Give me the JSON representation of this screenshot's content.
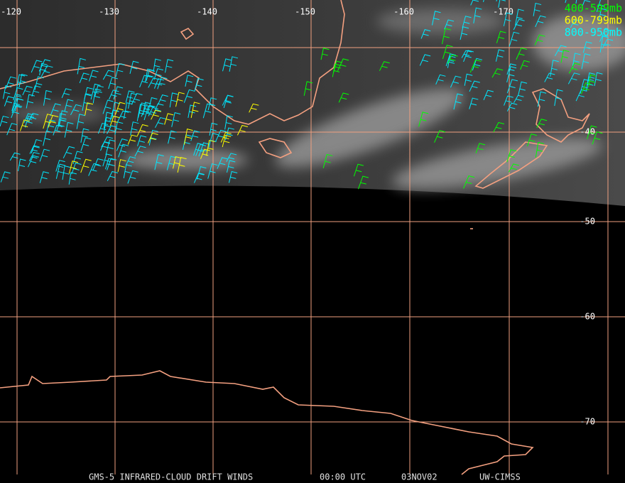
{
  "map": {
    "lon_labels": [
      "-120",
      "-130",
      "-140",
      "-150",
      "-160",
      "-170"
    ],
    "lat_labels": [
      "-40",
      "-50",
      "-60",
      "-70"
    ],
    "legend": [
      "400-599mb",
      "600-799mb",
      "800-950mb"
    ],
    "footer": [
      "GMS-5 INFRARED-CLOUD DRIFT WINDS",
      "00:00 UTC",
      "03NOV02",
      "UW-CIMSS"
    ]
  }
}
